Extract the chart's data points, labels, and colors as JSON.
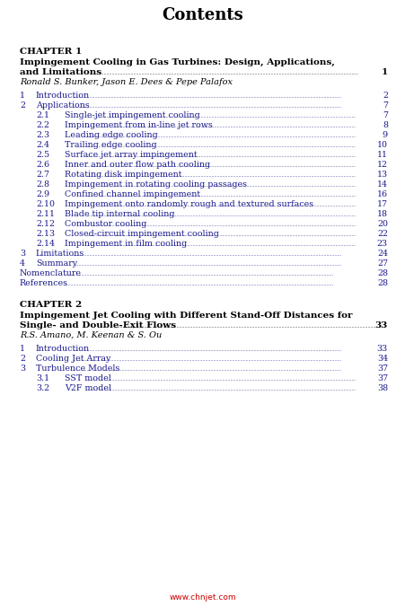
{
  "title": "Contents",
  "bg": "#ffffff",
  "blue": "#1a1a8c",
  "black": "#000000",
  "red": "#cc0000",
  "watermark": "www.chnjet.com",
  "ch1_header": "CHAPTER 1",
  "ch1_line1": "Impingement Cooling in Gas Turbines: Design, Applications,",
  "ch1_line2": "and Limitations",
  "ch1_page": "1",
  "ch1_authors": "Ronald S. Bunker, Jason E. Dees & Pepe Palafox",
  "ch2_header": "CHAPTER 2",
  "ch2_line1": "Impingement Jet Cooling with Different Stand-Off Distances for",
  "ch2_line2": "Single- and Double-Exit Flows",
  "ch2_page": "33",
  "ch2_authors": "R.S. Amano, M. Keenan & S. Ou",
  "entries1": [
    {
      "num": "1",
      "ind": 0,
      "text": "Introduction",
      "page": "2"
    },
    {
      "num": "2",
      "ind": 0,
      "text": "Applications",
      "page": "7"
    },
    {
      "num": "2.1",
      "ind": 1,
      "text": "Single-jet impingement cooling",
      "page": "7"
    },
    {
      "num": "2.2",
      "ind": 1,
      "text": "Impingement from in-line jet rows",
      "page": "8"
    },
    {
      "num": "2.3",
      "ind": 1,
      "text": "Leading edge cooling",
      "page": "9"
    },
    {
      "num": "2.4",
      "ind": 1,
      "text": "Trailing edge cooling",
      "page": "10"
    },
    {
      "num": "2.5",
      "ind": 1,
      "text": "Surface jet array impingement",
      "page": "11"
    },
    {
      "num": "2.6",
      "ind": 1,
      "text": "Inner and outer flow path cooling",
      "page": "12"
    },
    {
      "num": "2.7",
      "ind": 1,
      "text": "Rotating disk impingement",
      "page": "13"
    },
    {
      "num": "2.8",
      "ind": 1,
      "text": "Impingement in rotating cooling passages",
      "page": "14"
    },
    {
      "num": "2.9",
      "ind": 1,
      "text": "Confined channel impingement",
      "page": "16"
    },
    {
      "num": "2.10",
      "ind": 1,
      "text": "Impingement onto randomly rough and textured surfaces",
      "page": "17"
    },
    {
      "num": "2.11",
      "ind": 1,
      "text": "Blade tip internal cooling",
      "page": "18"
    },
    {
      "num": "2.12",
      "ind": 1,
      "text": "Combustor cooling",
      "page": "20"
    },
    {
      "num": "2.13",
      "ind": 1,
      "text": "Closed-circuit impingement cooling",
      "page": "22"
    },
    {
      "num": "2.14",
      "ind": 1,
      "text": "Impingement in film cooling",
      "page": "23"
    },
    {
      "num": "3",
      "ind": 0,
      "text": "Limitations",
      "page": "24"
    },
    {
      "num": "4",
      "ind": 0,
      "text": "Summary",
      "page": "27"
    },
    {
      "num": "",
      "ind": -1,
      "text": "Nomenclature",
      "page": "28"
    },
    {
      "num": "",
      "ind": -1,
      "text": "References",
      "page": "28"
    }
  ],
  "entries2": [
    {
      "num": "1",
      "ind": 0,
      "text": "Introduction",
      "page": "33"
    },
    {
      "num": "2",
      "ind": 0,
      "text": "Cooling Jet Array",
      "page": "34"
    },
    {
      "num": "3",
      "ind": 0,
      "text": "Turbulence Models",
      "page": "37"
    },
    {
      "num": "3.1",
      "ind": 1,
      "text": "SST model",
      "page": "37"
    },
    {
      "num": "3.2",
      "ind": 1,
      "text": "V2F model",
      "page": "38"
    }
  ],
  "title_fs": 13,
  "ch_header_fs": 7.5,
  "ch_title_fs": 7.5,
  "author_fs": 7.0,
  "entry_fs": 6.8,
  "dot_fs": 3.5,
  "watermark_fs": 6.5,
  "lh": 11.0,
  "fig_w": 4.51,
  "fig_h": 6.75,
  "dpi": 100
}
